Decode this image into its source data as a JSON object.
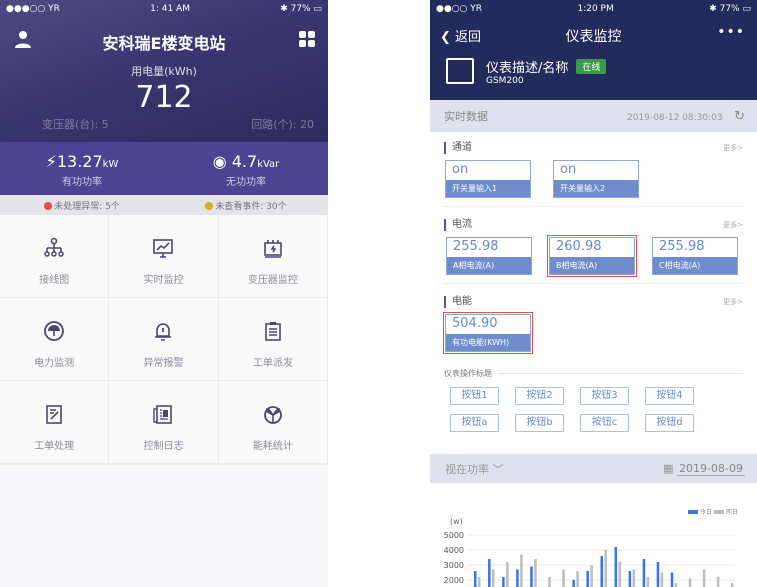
{
  "left": {
    "status": {
      "signal": "●●●○○ YR",
      "time": "1: 41 AM",
      "battery": "77%"
    },
    "title": "安科瑞E楼变电站",
    "usage_label": "用电量(kWh)",
    "usage_value": "712",
    "transformers": "变压器(台): 5",
    "circuits": "回路(个): 20",
    "active_power": {
      "value": "13.27",
      "unit": "kW",
      "label": "有功功率"
    },
    "reactive_power": {
      "value": "4.7",
      "unit": "kVar",
      "label": "无功功率"
    },
    "alerts": [
      {
        "text": "未处理异常: 5个",
        "color": "#e84b4b"
      },
      {
        "text": "未查看事件: 30个",
        "color": "#d4b020"
      }
    ],
    "menu": [
      {
        "label": "接线图",
        "icon": "wiring-diagram-icon"
      },
      {
        "label": "实时监控",
        "icon": "monitor-chart-icon"
      },
      {
        "label": "变压器监控",
        "icon": "transformer-icon"
      },
      {
        "label": "电力监测",
        "icon": "gauge-icon"
      },
      {
        "label": "异常报警",
        "icon": "alarm-bell-icon"
      },
      {
        "label": "工单派发",
        "icon": "clipboard-icon"
      },
      {
        "label": "工单处理",
        "icon": "edit-document-icon"
      },
      {
        "label": "控制日志",
        "icon": "newspaper-icon"
      },
      {
        "label": "能耗统计",
        "icon": "energy-stats-icon"
      }
    ]
  },
  "right": {
    "status": {
      "signal": "●●○○ YR",
      "time": "1:20 PM",
      "battery": "77%"
    },
    "back": "返回",
    "title": "仪表监控",
    "more": "•••",
    "device": {
      "name": "仪表描述/名称",
      "status": "在线",
      "model": "GSM200"
    },
    "realtime": {
      "label": "实时数据",
      "timestamp": "2019-08-12 08:30:03"
    },
    "sections": [
      {
        "title": "通道",
        "more": "更多>",
        "cards": [
          {
            "value": "on",
            "label": "开关量输入1"
          },
          {
            "value": "on",
            "label": "开关量输入2"
          }
        ]
      },
      {
        "title": "电流",
        "more": "更多>",
        "cards": [
          {
            "value": "255.98",
            "label": "A相电流(A)"
          },
          {
            "value": "260.98",
            "label": "B相电流(A)",
            "highlighted": true
          },
          {
            "value": "255.98",
            "label": "C相电流(A)"
          }
        ]
      },
      {
        "title": "电能",
        "more": "更多>",
        "cards": [
          {
            "value": "504.90",
            "label": "有功电能(KWH)",
            "highlighted": true
          }
        ]
      }
    ],
    "ops_title": "仪表操作标题",
    "buttons": [
      "按钮1",
      "按钮2",
      "按钮3",
      "按钮4",
      "按钮a",
      "按钮b",
      "按钮c",
      "按钮d"
    ],
    "power_select": "视在功率",
    "date": "2019-08-09"
  },
  "chart_data": {
    "type": "bar",
    "ylabel": "(w)",
    "yticks": [
      2000,
      3000,
      4000,
      5000
    ],
    "ylim": [
      0,
      5000
    ],
    "grid": true,
    "legend": "top-right",
    "series": [
      {
        "name": "今日",
        "color": "#3d73e8",
        "values": [
          2600,
          3400,
          2200,
          2700,
          2900,
          1500,
          1500,
          2000,
          2600,
          3600,
          4200,
          2600,
          3400,
          3200,
          2500,
          1500,
          1500,
          1500,
          1500
        ]
      },
      {
        "name": "昨日",
        "color": "#bdbdbd",
        "values": [
          2200,
          2700,
          3200,
          3700,
          3400,
          2200,
          2700,
          2600,
          3000,
          4000,
          3200,
          2700,
          2200,
          2500,
          1800,
          2100,
          2700,
          2200,
          1800
        ]
      }
    ]
  }
}
